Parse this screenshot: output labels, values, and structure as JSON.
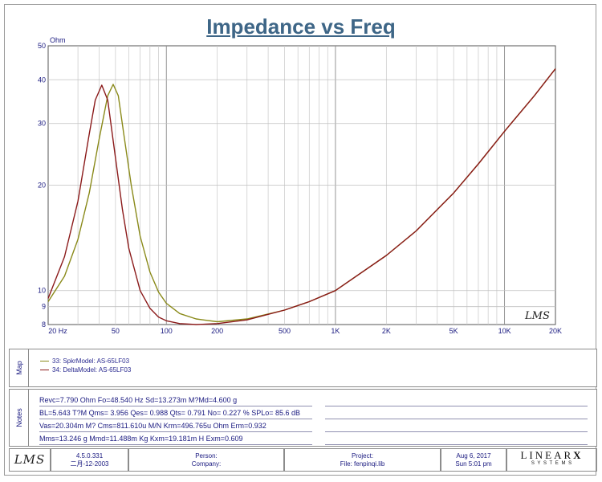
{
  "chart_data": {
    "type": "line",
    "title": "Impedance vs Freq",
    "ylabel": "Ohm",
    "xlim": [
      20,
      20000
    ],
    "ylim": [
      8,
      50
    ],
    "x_scale": "log",
    "y_scale": "log",
    "grid": true,
    "x_ticks": [
      20,
      50,
      100,
      200,
      500,
      1000,
      2000,
      5000,
      10000,
      20000
    ],
    "x_tick_labels": [
      "20 Hz",
      "50",
      "100",
      "200",
      "500",
      "1K",
      "2K",
      "5K",
      "10K",
      "20K"
    ],
    "y_ticks": [
      8,
      9,
      10,
      20,
      30,
      40,
      50
    ],
    "y_tick_labels": [
      "8",
      "9",
      "10",
      "20",
      "30",
      "40",
      "50"
    ],
    "series": [
      {
        "name": "33: SpkrModel: AS-65LF03",
        "color": "#8a8a1a",
        "x": [
          20,
          25,
          30,
          35,
          40,
          45,
          48.5,
          52,
          56,
          62,
          70,
          80,
          90,
          100,
          120,
          150,
          200,
          300,
          500,
          700,
          1000,
          2000,
          3000,
          5000,
          7000,
          10000,
          15000,
          20000
        ],
        "y": [
          9.3,
          11.0,
          14.0,
          19.0,
          27.0,
          36.0,
          38.8,
          36.0,
          28.0,
          20.0,
          14.3,
          11.3,
          9.9,
          9.2,
          8.6,
          8.3,
          8.15,
          8.3,
          8.8,
          9.3,
          10.0,
          12.6,
          14.8,
          19.0,
          23.0,
          28.5,
          36.0,
          43.0
        ]
      },
      {
        "name": "34: DeltaModel: AS-65LF03",
        "color": "#8b1a1a",
        "x": [
          20,
          25,
          30,
          35,
          38,
          41.5,
          45,
          50,
          55,
          60,
          70,
          80,
          90,
          100,
          120,
          150,
          200,
          300,
          500,
          700,
          1000,
          2000,
          3000,
          5000,
          7000,
          10000,
          15000,
          20000
        ],
        "y": [
          9.5,
          12.5,
          18.0,
          28.0,
          35.0,
          38.6,
          35.0,
          24.0,
          17.0,
          13.2,
          10.0,
          8.9,
          8.4,
          8.2,
          8.05,
          8.0,
          8.05,
          8.25,
          8.8,
          9.3,
          10.0,
          12.6,
          14.8,
          19.0,
          23.0,
          28.5,
          36.0,
          43.0
        ]
      }
    ],
    "watermark": "LMS"
  },
  "map": {
    "label": "Map",
    "items": [
      {
        "text": "33: SpkrModel: AS-65LF03",
        "color": "#8a8a1a"
      },
      {
        "text": "34: DeltaModel: AS-65LF03",
        "color": "#8b1a1a"
      }
    ]
  },
  "notes": {
    "label": "Notes",
    "lines": [
      "Revc=7.790 Ohm  Fo=48.540 Hz  Sd=13.273m M?Md=4.600 g",
      "BL=5.643 T?M  Qms= 3.956  Qes= 0.988  Qts= 0.791  No= 0.227 %  SPLo= 85.6 dB",
      "Vas=20.304m M? Cms=811.610u M/N  Krm=496.765u Ohm  Erm=0.932",
      "Mms=13.246 g  Mmd=11.488m Kg  Kxm=19.181m H  Exm=0.609"
    ]
  },
  "footer": {
    "logo": "LMS",
    "version": "4.5.0.331",
    "version_date": "二月-12-2003",
    "person_label": "Person:",
    "company_label": "Company:",
    "project_label": "Project:",
    "file_label": "File: fenpinqi.lib",
    "date": "Aug  6, 2017",
    "time": "Sun  5:01 pm",
    "brand": "LINEAR",
    "brand_x": "X",
    "brand_sub": "S Y S T E M S"
  }
}
